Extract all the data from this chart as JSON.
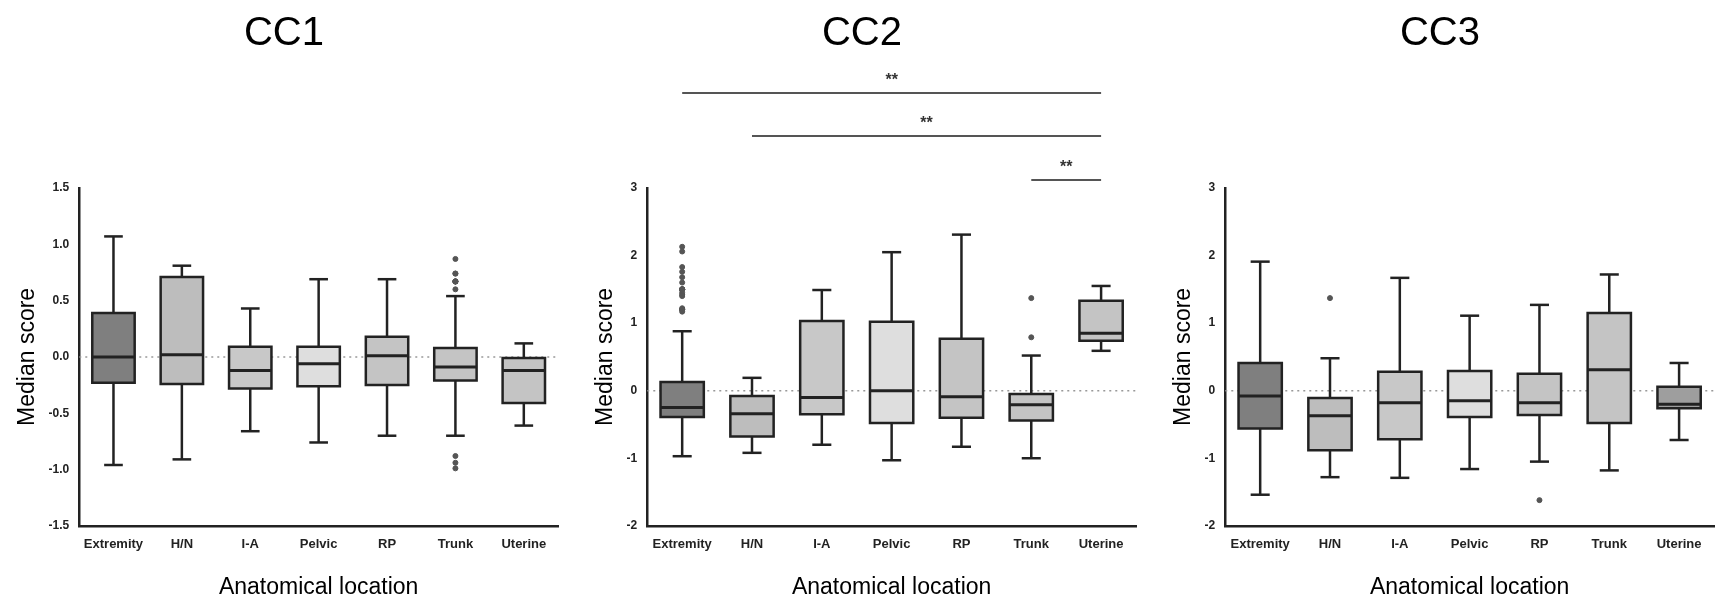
{
  "chart_data": [
    {
      "type": "box",
      "title": "CC1",
      "xlabel": "Anatomical location",
      "ylabel": "Median score",
      "categories": [
        "Extremity",
        "H/N",
        "I-A",
        "Pelvic",
        "RP",
        "Trunk",
        "Uterine"
      ],
      "colors": [
        "#7f7f7f",
        "#bdbdbd",
        "#c8c8c8",
        "#dedede",
        "#c4c4c4",
        "#c4c4c4",
        "#c4c4c4"
      ],
      "boxes": [
        {
          "low": -0.96,
          "q1": -0.23,
          "median": 0.0,
          "q3": 0.39,
          "high": 1.07
        },
        {
          "low": -0.91,
          "q1": -0.24,
          "median": 0.02,
          "q3": 0.71,
          "high": 0.81
        },
        {
          "low": -0.66,
          "q1": -0.28,
          "median": -0.12,
          "q3": 0.09,
          "high": 0.43
        },
        {
          "low": -0.76,
          "q1": -0.26,
          "median": -0.06,
          "q3": 0.09,
          "high": 0.69
        },
        {
          "low": -0.7,
          "q1": -0.25,
          "median": 0.01,
          "q3": 0.18,
          "high": 0.69
        },
        {
          "low": -0.7,
          "q1": -0.21,
          "median": -0.09,
          "q3": 0.08,
          "high": 0.54,
          "outliers": [
            0.87,
            0.74,
            0.74,
            0.67,
            0.67,
            0.67,
            0.67,
            0.67,
            0.6,
            -0.88,
            -0.94,
            -0.99
          ]
        },
        {
          "low": -0.61,
          "q1": -0.41,
          "median": -0.12,
          "q3": -0.01,
          "high": 0.12
        }
      ],
      "ylim": [
        -1.5,
        1.5
      ],
      "yticks": [
        {
          "value": -1.5,
          "label": "-1.5"
        },
        {
          "value": -1,
          "label": "-1.0"
        },
        {
          "value": -0.5,
          "label": "-0.5"
        },
        {
          "value": 0,
          "label": "0.0"
        },
        {
          "value": 0.5,
          "label": "0.5"
        },
        {
          "value": 1,
          "label": "1.0"
        },
        {
          "value": 1.5,
          "label": "1.5"
        }
      ],
      "ref_lines": [
        {
          "axis": "y",
          "value": 0,
          "line_style": "dotted",
          "color": "#999999"
        }
      ],
      "grid": false,
      "legend": false
    },
    {
      "type": "box",
      "title": "CC2",
      "xlabel": "Anatomical location",
      "ylabel": "Median score",
      "categories": [
        "Extremity",
        "H/N",
        "I-A",
        "Pelvic",
        "RP",
        "Trunk",
        "Uterine"
      ],
      "colors": [
        "#7f7f7f",
        "#bdbdbd",
        "#c8c8c8",
        "#dedede",
        "#c4c4c4",
        "#c4c4c4",
        "#c4c4c4"
      ],
      "boxes": [
        {
          "low": -0.97,
          "q1": -0.39,
          "median": -0.25,
          "q3": 0.13,
          "high": 0.88,
          "outliers": [
            2.13,
            2.06,
            1.83,
            1.76,
            1.68,
            1.6,
            1.5,
            1.5,
            1.5,
            1.5,
            1.5,
            1.5,
            1.45,
            1.42,
            1.4,
            1.22,
            1.2,
            1.2,
            1.2,
            1.17
          ]
        },
        {
          "low": -0.92,
          "q1": -0.68,
          "median": -0.34,
          "q3": -0.08,
          "high": 0.19
        },
        {
          "low": -0.8,
          "q1": -0.35,
          "median": -0.1,
          "q3": 1.03,
          "high": 1.49
        },
        {
          "low": -1.03,
          "q1": -0.48,
          "median": 0.0,
          "q3": 1.02,
          "high": 2.05
        },
        {
          "low": -0.83,
          "q1": -0.4,
          "median": -0.09,
          "q3": 0.77,
          "high": 2.31
        },
        {
          "low": -1.0,
          "q1": -0.44,
          "median": -0.21,
          "q3": -0.05,
          "high": 0.52,
          "outliers": [
            1.37,
            0.79
          ]
        },
        {
          "low": 0.59,
          "q1": 0.74,
          "median": 0.85,
          "q3": 1.33,
          "high": 1.55
        }
      ],
      "ylim": [
        -2,
        3
      ],
      "yticks": [
        -2,
        -1,
        0,
        1,
        2,
        3
      ],
      "ref_lines": [
        {
          "axis": "y",
          "value": 0,
          "line_style": "dotted",
          "color": "#999999"
        }
      ],
      "annotations": [
        "**",
        "**",
        "**"
      ],
      "grid": false,
      "legend": false
    },
    {
      "type": "box",
      "title": "CC3",
      "xlabel": "Anatomical location",
      "ylabel": "Median score",
      "categories": [
        "Extremity",
        "H/N",
        "I-A",
        "Pelvic",
        "RP",
        "Trunk",
        "Uterine"
      ],
      "colors": [
        "#7f7f7f",
        "#bdbdbd",
        "#c8c8c8",
        "#dedede",
        "#c4c4c4",
        "#c4c4c4",
        "#9e9e9e"
      ],
      "boxes": [
        {
          "low": -1.54,
          "q1": -0.56,
          "median": -0.08,
          "q3": 0.41,
          "high": 1.91
        },
        {
          "low": -1.28,
          "q1": -0.88,
          "median": -0.37,
          "q3": -0.11,
          "high": 0.48,
          "outliers": [
            1.37
          ]
        },
        {
          "low": -1.29,
          "q1": -0.72,
          "median": -0.18,
          "q3": 0.28,
          "high": 1.67
        },
        {
          "low": -1.16,
          "q1": -0.39,
          "median": -0.15,
          "q3": 0.29,
          "high": 1.11
        },
        {
          "low": -1.05,
          "q1": -0.36,
          "median": -0.18,
          "q3": 0.25,
          "high": 1.27,
          "outliers": [
            -1.62
          ]
        },
        {
          "low": -1.18,
          "q1": -0.48,
          "median": 0.31,
          "q3": 1.15,
          "high": 1.72
        },
        {
          "low": -0.73,
          "q1": -0.26,
          "median": -0.2,
          "q3": 0.06,
          "high": 0.41
        }
      ],
      "ylim": [
        -2,
        3
      ],
      "yticks": [
        -2,
        -1,
        0,
        1,
        2,
        3
      ],
      "ref_lines": [
        {
          "axis": "y",
          "value": 0,
          "line_style": "dotted",
          "color": "#999999"
        }
      ],
      "grid": false,
      "legend": false
    }
  ]
}
